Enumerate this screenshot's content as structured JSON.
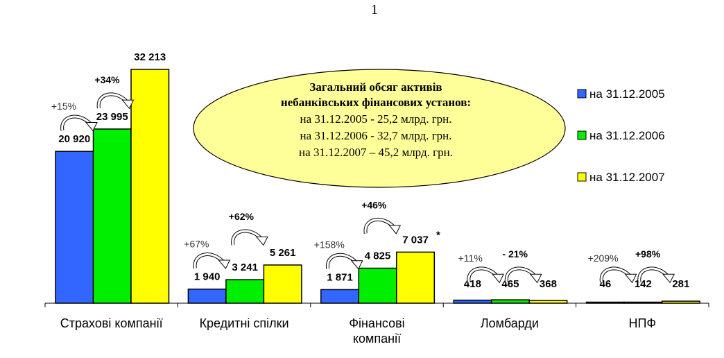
{
  "page_number": "1",
  "chart_data": {
    "type": "bar",
    "title": "",
    "xlabel": "",
    "ylabel": "",
    "ylim": [
      0,
      32213
    ],
    "grid": false,
    "legend_position": "right",
    "categories": [
      [
        "Страхові компанії"
      ],
      [
        "Кредитні спілки"
      ],
      [
        "Фінансові",
        "компанії"
      ],
      [
        "Ломбарди"
      ],
      [
        "НПФ"
      ]
    ],
    "series": [
      {
        "name": "на 31.12.2005",
        "color": "#3366ff",
        "values": [
          20920,
          1940,
          1871,
          418,
          46
        ],
        "labels": [
          "20 920",
          "1 940",
          "1 871",
          "418",
          "46"
        ]
      },
      {
        "name": "на 31.12.2006",
        "color": "#00ee00",
        "values": [
          23995,
          3241,
          4825,
          465,
          142
        ],
        "labels": [
          "23 995",
          "3 241",
          "4 825",
          "465",
          "142"
        ]
      },
      {
        "name": "на 31.12.2007",
        "color": "#ffff00",
        "values": [
          32213,
          5261,
          7037,
          368,
          281
        ],
        "labels": [
          "32 213",
          "5 261",
          "7 037",
          "368",
          "281"
        ]
      }
    ],
    "footnote_marker": "*",
    "growth_annotations": [
      [
        {
          "text": "+15%",
          "bold": false
        },
        {
          "text": "+34%",
          "bold": true
        }
      ],
      [
        {
          "text": "+67%",
          "bold": false
        },
        {
          "text": "+62%",
          "bold": true
        }
      ],
      [
        {
          "text": "+158%",
          "bold": false
        },
        {
          "text": "+46%",
          "bold": true
        }
      ],
      [
        {
          "text": "+11%",
          "bold": false
        },
        {
          "text": "- 21%",
          "bold": true
        }
      ],
      [
        {
          "text": "+209%",
          "bold": false
        },
        {
          "text": "+98%",
          "bold": true
        }
      ]
    ],
    "callout": {
      "title": [
        "Загальний обсяг активів",
        "небанківських фінансових установ:"
      ],
      "lines": [
        "на 31.12.2005 - 25,2 млрд. грн.",
        "на 31.12.2006 - 32,7 млрд. грн.",
        "на 31.12.2007 – 45,2 млрд. грн."
      ]
    }
  }
}
